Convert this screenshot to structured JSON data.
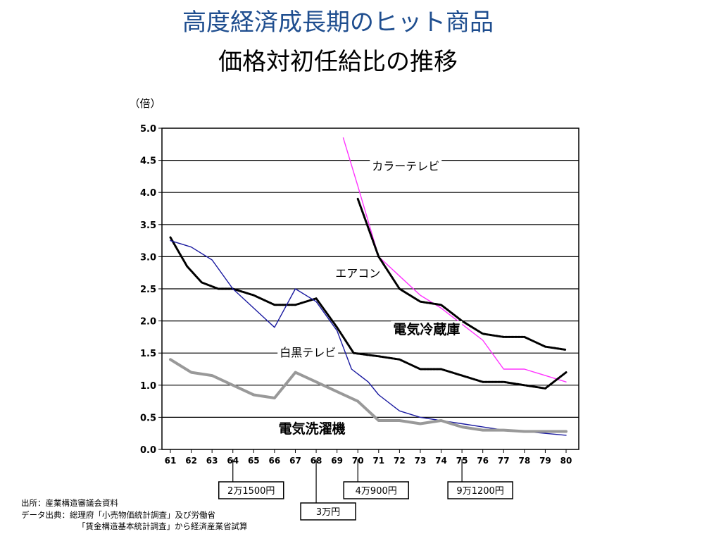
{
  "title": "高度経済成長期のヒット商品",
  "subtitle": "価格対初任給比の推移",
  "source_lines": [
    "出所：産業構造審議会資料",
    "データ出典：総理府「小売物価統計調査」及び労働省",
    "「賃金構造基本統計調査」から経済産業省試算"
  ],
  "chart_data": {
    "type": "line",
    "ylabel": "（倍）",
    "ylim": [
      0,
      5.0
    ],
    "yticks": [
      "0.0",
      "0.5",
      "1.0",
      "1.5",
      "2.0",
      "2.5",
      "3.0",
      "3.5",
      "4.0",
      "4.5",
      "5.0"
    ],
    "xlim": [
      1961,
      1980
    ],
    "xticks": [
      {
        "value": 1961,
        "label": "61"
      },
      {
        "value": 1962,
        "label": "62"
      },
      {
        "value": 1963,
        "label": "63"
      },
      {
        "value": 1964,
        "label": "64"
      },
      {
        "value": 1965,
        "label": "65"
      },
      {
        "value": 1966,
        "label": "66"
      },
      {
        "value": 1967,
        "label": "67"
      },
      {
        "value": 1968,
        "label": "68"
      },
      {
        "value": 1969,
        "label": "69"
      },
      {
        "value": 1970,
        "label": "70"
      },
      {
        "value": 1971,
        "label": "71"
      },
      {
        "value": 1972,
        "label": "72"
      },
      {
        "value": 1973,
        "label": "73"
      },
      {
        "value": 1974,
        "label": "74"
      },
      {
        "value": 1975,
        "label": "75"
      },
      {
        "value": 1976,
        "label": "76"
      },
      {
        "value": 1977,
        "label": "77"
      },
      {
        "value": 1978,
        "label": "78"
      },
      {
        "value": 1979,
        "label": "79"
      },
      {
        "value": 1980,
        "label": "80"
      }
    ],
    "grid": "horizontal",
    "series": [
      {
        "name": "カラーテレビ",
        "color": "#ff33ff",
        "style": "solid",
        "x": [
          1969.3,
          1970.0,
          1971.0,
          1972.0,
          1973.0,
          1974.0,
          1975.0,
          1976.0,
          1977.0,
          1978.0,
          1979.0,
          1980.0
        ],
        "y": [
          4.85,
          4.1,
          3.0,
          2.7,
          2.4,
          2.2,
          1.95,
          1.7,
          1.25,
          1.25,
          1.15,
          1.05
        ]
      },
      {
        "name": "エアコン",
        "color": "#000000",
        "style": "dashed",
        "x": [
          1970.0,
          1970.5,
          1971.0,
          1971.5,
          1972.0,
          1973.0,
          1974.0,
          1975.0,
          1976.0,
          1977.0,
          1978.0,
          1979.0,
          1980.0
        ],
        "y": [
          3.9,
          3.45,
          3.0,
          2.75,
          2.5,
          2.3,
          2.25,
          2.0,
          1.8,
          1.75,
          1.75,
          1.6,
          1.55
        ]
      },
      {
        "name": "電気冷蔵庫",
        "color": "#000000",
        "style": "dashed",
        "x": [
          1961.0,
          1961.8,
          1962.5,
          1963.3,
          1964.0,
          1965.0,
          1966.0,
          1967.0,
          1968.0,
          1969.0,
          1969.8,
          1971.0,
          1972.0,
          1973.0,
          1974.0,
          1975.0,
          1976.0,
          1977.0,
          1978.0,
          1979.0,
          1980.0
        ],
        "y": [
          3.3,
          2.85,
          2.6,
          2.5,
          2.5,
          2.4,
          2.25,
          2.25,
          2.35,
          1.9,
          1.5,
          1.45,
          1.4,
          1.25,
          1.25,
          1.15,
          1.05,
          1.05,
          1.0,
          0.95,
          1.2
        ]
      },
      {
        "name": "白黒テレビ",
        "color": "#1a1aa0",
        "style": "solid",
        "x": [
          1961.0,
          1962.0,
          1963.0,
          1964.0,
          1965.0,
          1966.0,
          1967.0,
          1968.0,
          1969.0,
          1969.7,
          1970.5,
          1971.0,
          1972.0,
          1973.0,
          1974.0,
          1975.0,
          1976.0,
          1977.0,
          1978.0,
          1979.0,
          1980.0
        ],
        "y": [
          3.25,
          3.15,
          2.95,
          2.5,
          2.2,
          1.9,
          2.5,
          2.3,
          1.85,
          1.25,
          1.05,
          0.85,
          0.6,
          0.5,
          0.45,
          0.4,
          0.35,
          0.3,
          0.28,
          0.25,
          0.22
        ]
      },
      {
        "name": "電気洗濯機",
        "color": "#999999",
        "style": "solid",
        "x": [
          1961.0,
          1962.0,
          1963.0,
          1964.0,
          1965.0,
          1966.0,
          1967.0,
          1968.0,
          1969.0,
          1970.0,
          1970.5,
          1971.0,
          1972.0,
          1973.0,
          1974.0,
          1975.0,
          1976.0,
          1977.0,
          1978.0,
          1979.0,
          1980.0
        ],
        "y": [
          1.4,
          1.2,
          1.15,
          1.0,
          0.85,
          0.8,
          1.2,
          1.05,
          0.9,
          0.75,
          0.6,
          0.45,
          0.45,
          0.4,
          0.45,
          0.35,
          0.3,
          0.3,
          0.28,
          0.28,
          0.28
        ]
      }
    ],
    "series_labels": [
      {
        "name": "カラーテレビ",
        "x": 1972.3,
        "y": 4.35,
        "bold": false
      },
      {
        "name": "エアコン",
        "x": 1970.0,
        "y": 2.68,
        "bold": false
      },
      {
        "name": "電気冷蔵庫",
        "x": 1973.3,
        "y": 1.8,
        "bold": true
      },
      {
        "name": "白黒テレビ",
        "x": 1967.6,
        "y": 1.45,
        "bold": false
      },
      {
        "name": "電気洗濯機",
        "x": 1967.8,
        "y": 0.25,
        "bold": true
      }
    ],
    "annotations": [
      {
        "text": "2万1500円",
        "x": 1964.0
      },
      {
        "text": "3万円",
        "x": 1968.0
      },
      {
        "text": "4万900円",
        "x": 1970.0
      },
      {
        "text": "9万1200円",
        "x": 1975.0
      }
    ]
  }
}
